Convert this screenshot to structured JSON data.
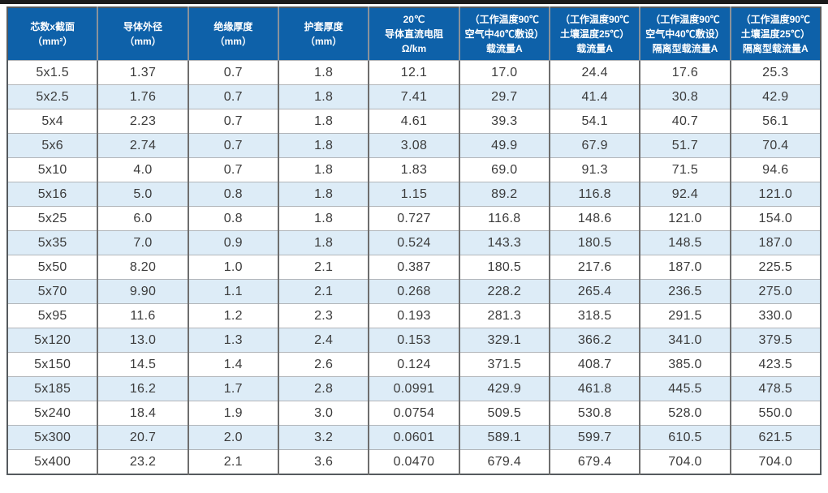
{
  "page": {
    "top_rule_color": "#1b1b1b"
  },
  "colors": {
    "header_bg": "#0e61a9",
    "header_text": "#ffffff",
    "row_bg": "#ffffff",
    "row_alt_bg": "#ddecf7",
    "cell_text": "#3b3b3b",
    "grid_vertical": "#6e6e6e",
    "grid_horizontal": "#b2b6ba",
    "outer_border": "#555a5e"
  },
  "table": {
    "columns": [
      {
        "id": "cores-x-section",
        "header_lines": [
          "芯数x截面",
          "（mm²）"
        ]
      },
      {
        "id": "conductor-od",
        "header_lines": [
          "导体外径",
          "（mm）"
        ]
      },
      {
        "id": "insulation-thickness",
        "header_lines": [
          "绝缘厚度",
          "（mm）"
        ]
      },
      {
        "id": "sheath-thickness",
        "header_lines": [
          "护套厚度",
          "（mm）"
        ]
      },
      {
        "id": "dc-resistance-20c",
        "header_lines": [
          "20℃",
          "导体直流电阻",
          "Ω/km"
        ]
      },
      {
        "id": "ampacity-air",
        "header_lines": [
          "（工作温度90℃",
          "空气中40℃敷设）",
          "载流量A"
        ]
      },
      {
        "id": "ampacity-soil",
        "header_lines": [
          "（工作温度90℃",
          "土壤温度25℃）",
          "载流量A"
        ]
      },
      {
        "id": "isolated-ampacity-air",
        "header_lines": [
          "（工作温度90℃",
          "空气中40℃敷设）",
          "隔离型载流量A"
        ]
      },
      {
        "id": "isolated-ampacity-soil",
        "header_lines": [
          "（工作温度90℃",
          "土壤温度25℃）",
          "隔离型载流量A"
        ]
      }
    ],
    "rows": [
      [
        "5x1.5",
        "1.37",
        "0.7",
        "1.8",
        "12.1",
        "17.0",
        "24.4",
        "17.6",
        "25.3"
      ],
      [
        "5x2.5",
        "1.76",
        "0.7",
        "1.8",
        "7.41",
        "29.7",
        "41.4",
        "30.8",
        "42.9"
      ],
      [
        "5x4",
        "2.23",
        "0.7",
        "1.8",
        "4.61",
        "39.3",
        "54.1",
        "40.7",
        "56.1"
      ],
      [
        "5x6",
        "2.74",
        "0.7",
        "1.8",
        "3.08",
        "49.9",
        "67.9",
        "51.7",
        "70.4"
      ],
      [
        "5x10",
        "4.0",
        "0.7",
        "1.8",
        "1.83",
        "69.0",
        "91.3",
        "71.5",
        "94.6"
      ],
      [
        "5x16",
        "5.0",
        "0.8",
        "1.8",
        "1.15",
        "89.2",
        "116.8",
        "92.4",
        "121.0"
      ],
      [
        "5x25",
        "6.0",
        "0.8",
        "1.8",
        "0.727",
        "116.8",
        "148.6",
        "121.0",
        "154.0"
      ],
      [
        "5x35",
        "7.0",
        "0.9",
        "1.8",
        "0.524",
        "143.3",
        "180.5",
        "148.5",
        "187.0"
      ],
      [
        "5x50",
        "8.20",
        "1.0",
        "2.1",
        "0.387",
        "180.5",
        "217.6",
        "187.0",
        "225.5"
      ],
      [
        "5x70",
        "9.90",
        "1.1",
        "2.1",
        "0.268",
        "228.2",
        "265.4",
        "236.5",
        "275.0"
      ],
      [
        "5x95",
        "11.6",
        "1.2",
        "2.3",
        "0.193",
        "281.3",
        "318.5",
        "291.5",
        "330.0"
      ],
      [
        "5x120",
        "13.0",
        "1.3",
        "2.4",
        "0.153",
        "329.1",
        "366.2",
        "341.0",
        "379.5"
      ],
      [
        "5x150",
        "14.5",
        "1.4",
        "2.6",
        "0.124",
        "371.5",
        "408.7",
        "385.0",
        "423.5"
      ],
      [
        "5x185",
        "16.2",
        "1.7",
        "2.8",
        "0.0991",
        "429.9",
        "461.8",
        "445.5",
        "478.5"
      ],
      [
        "5x240",
        "18.4",
        "1.9",
        "3.0",
        "0.0754",
        "509.5",
        "530.8",
        "528.0",
        "550.0"
      ],
      [
        "5x300",
        "20.7",
        "2.0",
        "3.2",
        "0.0601",
        "589.1",
        "599.7",
        "610.5",
        "621.5"
      ],
      [
        "5x400",
        "23.2",
        "2.1",
        "3.6",
        "0.0470",
        "679.4",
        "679.4",
        "704.0",
        "704.0"
      ]
    ]
  }
}
